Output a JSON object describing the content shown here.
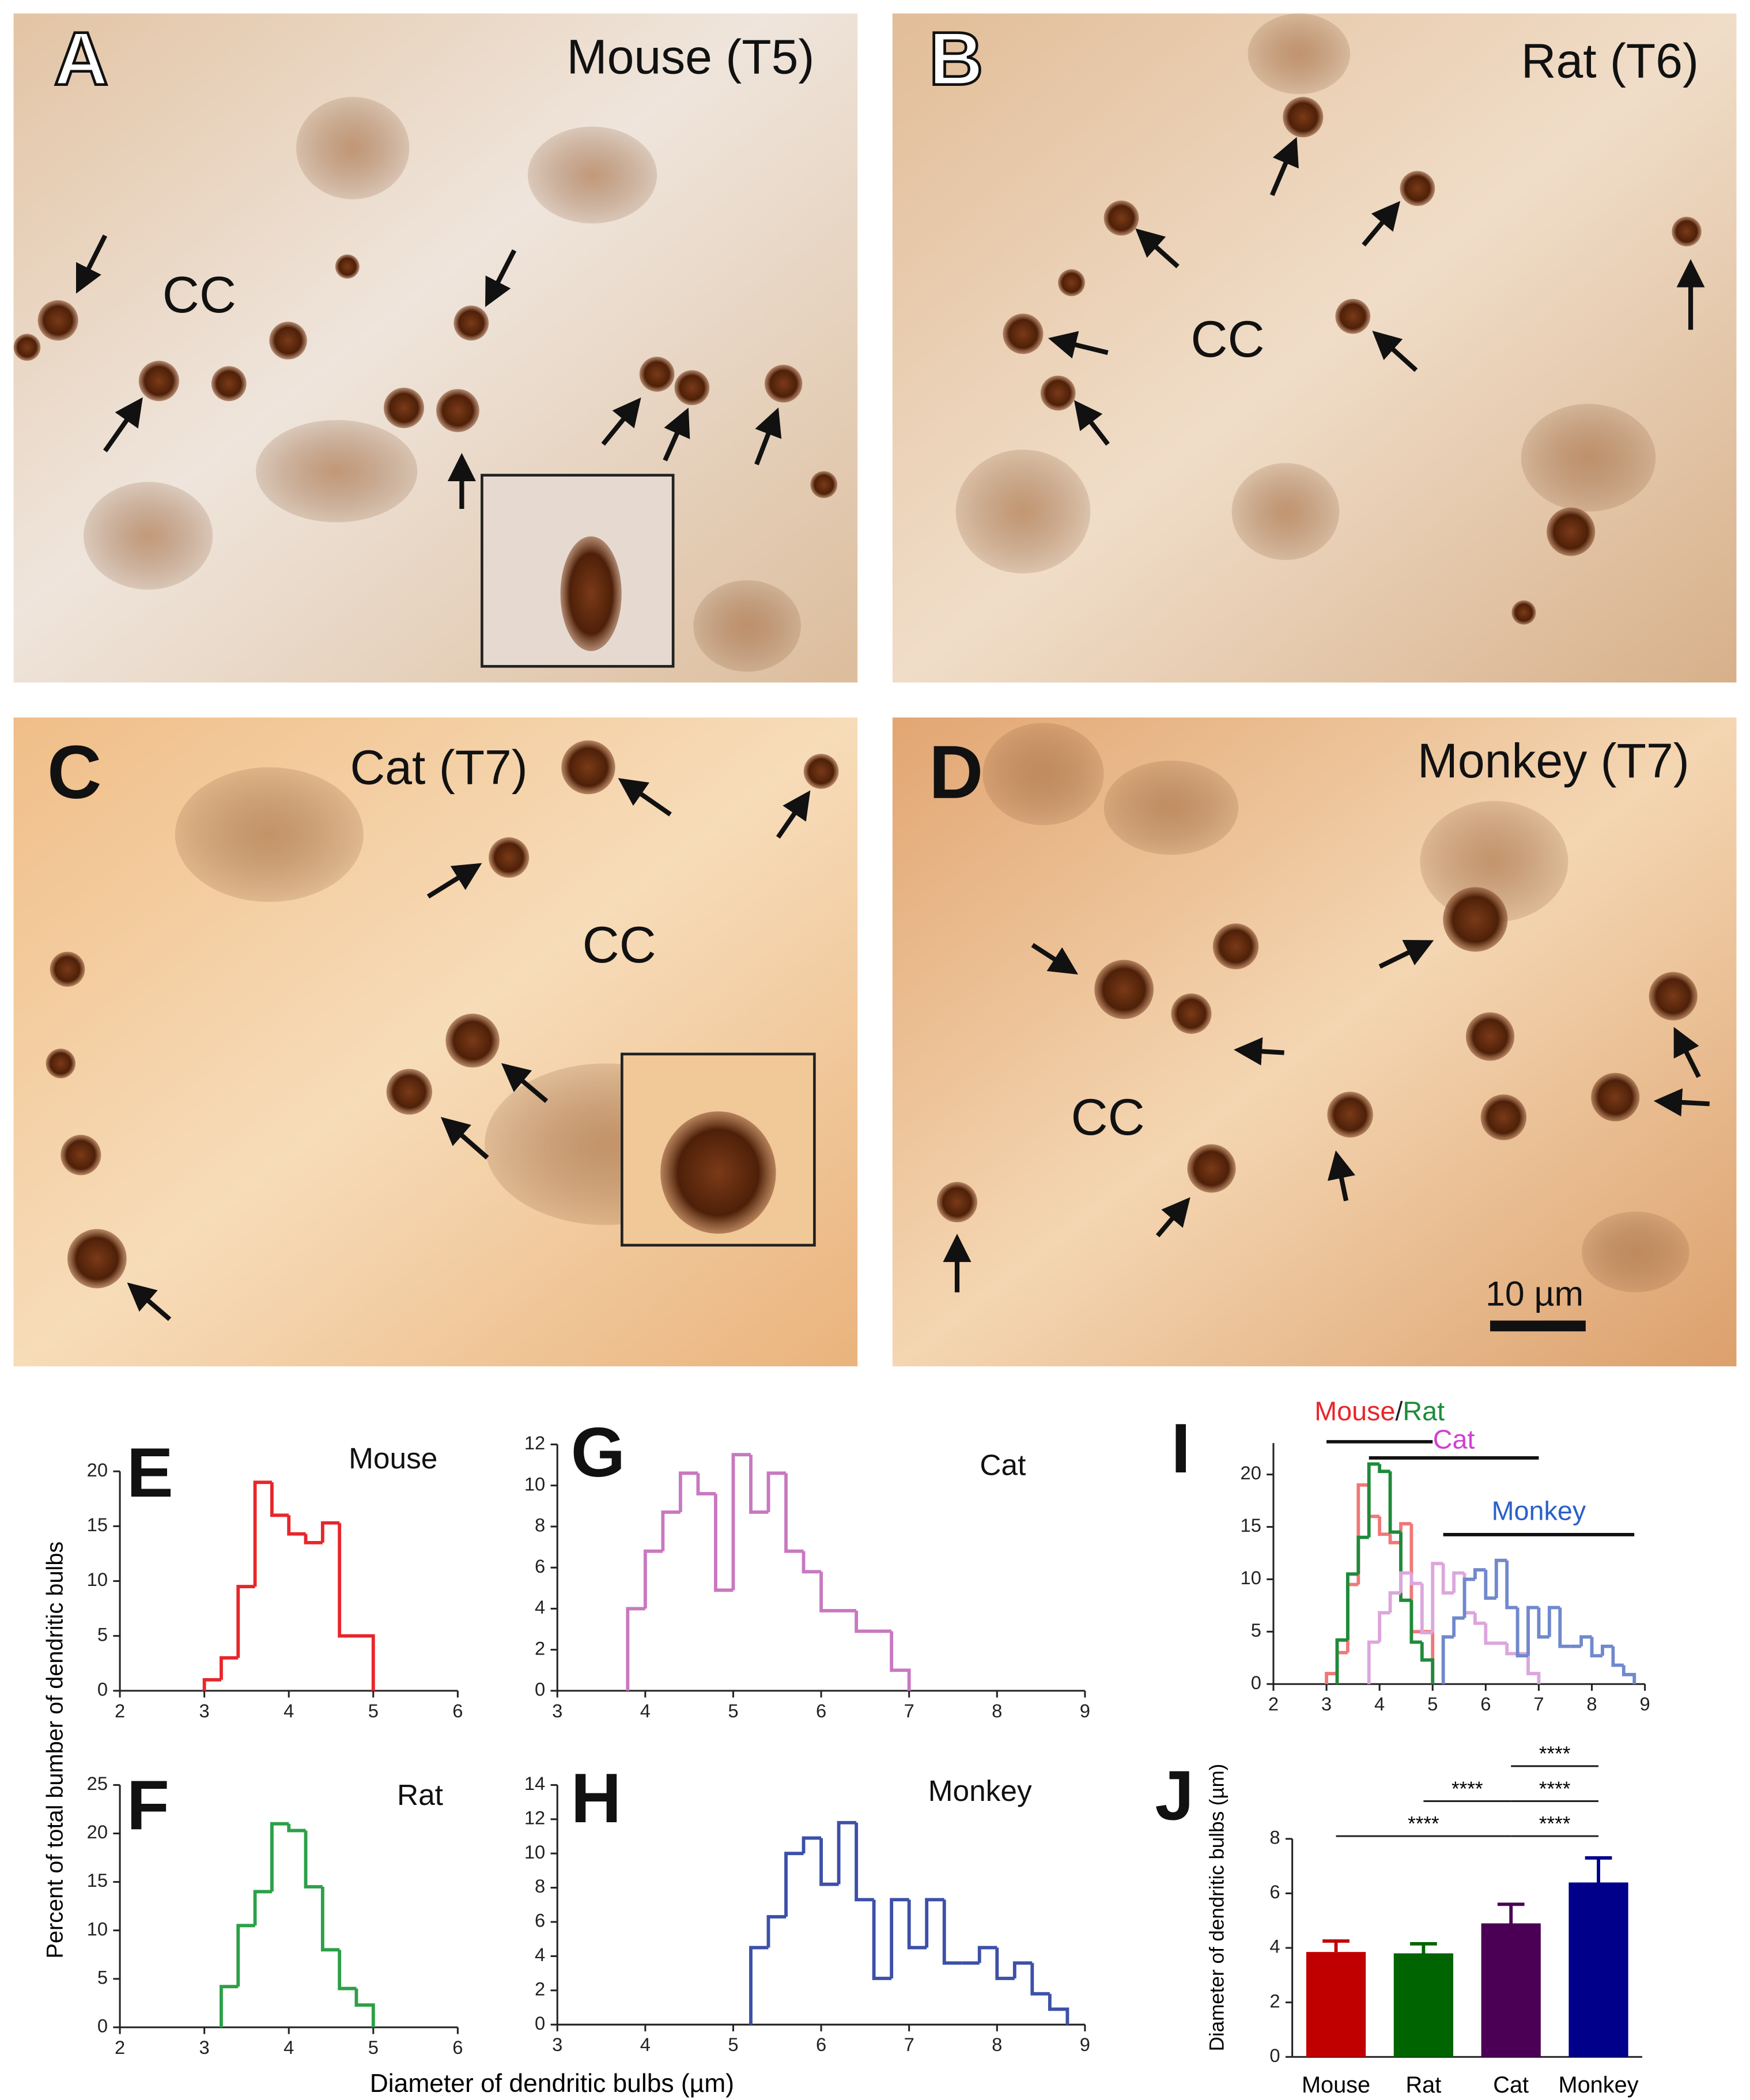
{
  "panels": [
    {
      "letter": "A",
      "title": "Mouse (T5)",
      "region": "CC"
    },
    {
      "letter": "B",
      "title": "Rat (T6)",
      "region": "CC"
    },
    {
      "letter": "C",
      "title": "Cat (T7)",
      "region": "CC"
    },
    {
      "letter": "D",
      "title": "Monkey (T7)",
      "region": "CC",
      "scale_bar": "10 µm"
    }
  ],
  "figure": {
    "ylabel": "Percent of total bumber of dendritic bulbs",
    "xlabel": "Diameter of dendritic bulbs (µm)"
  },
  "chart_data": [
    {
      "type": "histogram",
      "panel": "E",
      "title": "Mouse",
      "color": "#e8262b",
      "bins": [
        3,
        3.2,
        3.4,
        3.6,
        3.8,
        4,
        4.2,
        4.4,
        4.6,
        4.8,
        5
      ],
      "values": [
        1,
        3,
        9.5,
        19,
        16,
        14.3,
        13.5,
        15.3,
        5,
        5
      ],
      "xlim": [
        2,
        6
      ],
      "xticks": [
        2,
        3,
        4,
        5,
        6
      ],
      "ylim": [
        0,
        20
      ],
      "yticks": [
        0,
        5,
        10,
        15,
        20
      ]
    },
    {
      "type": "histogram",
      "panel": "F",
      "title": "Rat",
      "color": "#2ca048",
      "bins": [
        3.2,
        3.4,
        3.6,
        3.8,
        4,
        4.2,
        4.4,
        4.6,
        4.8,
        5
      ],
      "values": [
        4.2,
        10.5,
        14,
        21,
        20.3,
        14.5,
        8,
        4,
        2.3
      ],
      "xlim": [
        2,
        6
      ],
      "xticks": [
        2,
        3,
        4,
        5,
        6
      ],
      "ylim": [
        0,
        25
      ],
      "yticks": [
        0,
        5,
        10,
        15,
        20,
        25
      ]
    },
    {
      "type": "histogram",
      "panel": "G",
      "title": "Cat",
      "color": "#c878c0",
      "bins": [
        3.8,
        4,
        4.2,
        4.4,
        4.6,
        4.8,
        5,
        5.2,
        5.4,
        5.6,
        5.8,
        6,
        6.2,
        6.4,
        6.6,
        6.8,
        7
      ],
      "values": [
        4,
        6.8,
        8.7,
        10.6,
        9.6,
        4.9,
        11.5,
        8.7,
        10.6,
        6.8,
        5.8,
        3.9,
        3.9,
        2.9,
        2.9,
        1
      ],
      "xlim": [
        3,
        9
      ],
      "xticks": [
        3,
        4,
        5,
        6,
        7,
        8,
        9
      ],
      "ylim": [
        0,
        12
      ],
      "yticks": [
        0,
        2,
        4,
        6,
        8,
        10,
        12
      ]
    },
    {
      "type": "histogram",
      "panel": "H",
      "title": "Monkey",
      "color": "#3c50a8",
      "bins": [
        5.2,
        5.4,
        5.6,
        5.8,
        6,
        6.2,
        6.4,
        6.6,
        6.8,
        7,
        7.2,
        7.4,
        7.6,
        7.8,
        8,
        8.2,
        8.4,
        8.6,
        8.8
      ],
      "values": [
        4.5,
        6.3,
        10,
        10.9,
        8.2,
        11.8,
        7.3,
        2.7,
        7.3,
        4.5,
        7.3,
        3.6,
        3.6,
        4.5,
        2.7,
        3.6,
        1.8,
        0.9
      ],
      "xlim": [
        3,
        9
      ],
      "xticks": [
        3,
        4,
        5,
        6,
        7,
        8,
        9
      ],
      "ylim": [
        0,
        14
      ],
      "yticks": [
        0,
        2,
        4,
        6,
        8,
        10,
        12,
        14
      ]
    },
    {
      "type": "histogram",
      "panel": "I",
      "series": [
        {
          "color": "#f07878",
          "bins": [
            3,
            3.2,
            3.4,
            3.6,
            3.8,
            4,
            4.2,
            4.4,
            4.6,
            4.8,
            5
          ],
          "values": [
            1,
            3,
            9.5,
            19,
            16,
            14.3,
            13.5,
            15.3,
            5,
            5
          ]
        },
        {
          "color": "#1f8a3a",
          "bins": [
            3.2,
            3.4,
            3.6,
            3.8,
            4,
            4.2,
            4.4,
            4.6,
            4.8,
            5
          ],
          "values": [
            4.2,
            10.5,
            14,
            21,
            20.3,
            14.5,
            8,
            4,
            2.3
          ]
        },
        {
          "color": "#dca6dc",
          "bins": [
            3.8,
            4,
            4.2,
            4.4,
            4.6,
            4.8,
            5,
            5.2,
            5.4,
            5.6,
            5.8,
            6,
            6.2,
            6.4,
            6.6,
            6.8,
            7
          ],
          "values": [
            4,
            6.8,
            8.7,
            10.6,
            9.6,
            4.9,
            11.5,
            8.7,
            10.6,
            6.8,
            5.8,
            3.9,
            3.9,
            2.9,
            2.9,
            1
          ]
        },
        {
          "color": "#7088cc",
          "bins": [
            5.2,
            5.4,
            5.6,
            5.8,
            6,
            6.2,
            6.4,
            6.6,
            6.8,
            7,
            7.2,
            7.4,
            7.6,
            7.8,
            8,
            8.2,
            8.4,
            8.6,
            8.8
          ],
          "values": [
            4.5,
            6.3,
            10,
            10.9,
            8.2,
            11.8,
            7.3,
            2.7,
            7.3,
            4.5,
            7.3,
            3.6,
            3.6,
            4.5,
            2.7,
            3.6,
            1.8,
            0.9
          ]
        }
      ],
      "range_labels": [
        {
          "texts": [
            "Mouse",
            "/",
            "Rat"
          ],
          "colors": [
            "#e8262b",
            "#222222",
            "#1f8a3a"
          ],
          "range": [
            3,
            5
          ]
        },
        {
          "texts": [
            "Cat"
          ],
          "colors": [
            "#d040d0"
          ],
          "range": [
            3.8,
            7
          ]
        },
        {
          "texts": [
            "Monkey"
          ],
          "colors": [
            "#2a60c8"
          ],
          "range": [
            5.2,
            8.8
          ]
        }
      ],
      "xlim": [
        2,
        9
      ],
      "xticks": [
        2,
        3,
        4,
        5,
        6,
        7,
        8,
        9
      ],
      "ylim": [
        0,
        23
      ],
      "yticks": [
        0,
        5,
        10,
        15,
        20
      ]
    },
    {
      "type": "bar",
      "panel": "J",
      "ylabel": "Diameter of dendritic bulbs (µm)",
      "categories": [
        "Mouse",
        "Rat",
        "Cat",
        "Monkey"
      ],
      "values": [
        3.85,
        3.8,
        4.9,
        6.4
      ],
      "errors": [
        0.4,
        0.35,
        0.7,
        0.9
      ],
      "colors": [
        "#c00000",
        "#006400",
        "#4b0055",
        "#00008b"
      ],
      "ylim": [
        0,
        8
      ],
      "yticks": [
        0,
        2,
        4,
        6,
        8
      ],
      "significance": [
        [
          {
            "pair": [
              "Cat",
              "Monkey"
            ],
            "label": "****"
          }
        ],
        [
          {
            "pair": [
              "Rat",
              "Cat"
            ],
            "label": "****"
          },
          {
            "pair": [
              "Cat",
              "Monkey"
            ],
            "label": "****"
          }
        ],
        [
          {
            "pair": [
              "Mouse",
              "Cat"
            ],
            "label": "****"
          },
          {
            "pair": [
              "Cat",
              "Monkey"
            ],
            "label": "****"
          }
        ]
      ]
    }
  ]
}
